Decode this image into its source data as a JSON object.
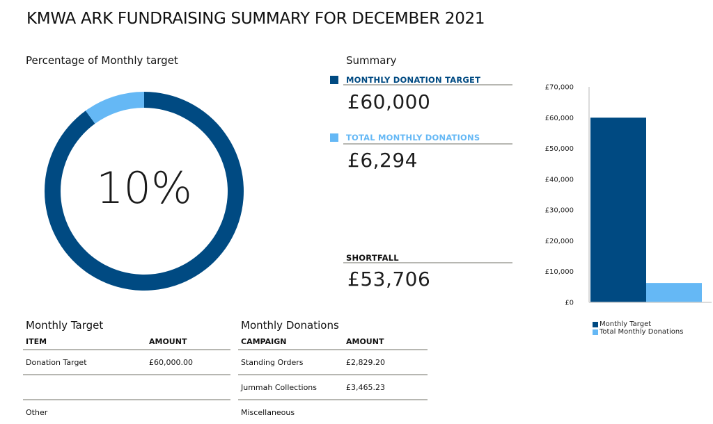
{
  "title": "KMWA ARK FUNDRAISING SUMMARY FOR DECEMBER 2021",
  "colors": {
    "dark": "#004a82",
    "light": "#65b8f5",
    "rule": "#b7b7b2"
  },
  "donut": {
    "title": "Percentage of Monthly target",
    "center_label": "10%",
    "fraction_achieved": 0.1
  },
  "summary": {
    "title": "Summary",
    "target_label": "MONTHLY DONATION TARGET",
    "target_value": "£60,000",
    "donations_label": "TOTAL MONTHLY DONATIONS",
    "donations_value": "£6,294",
    "shortfall_label": "SHORTFALL",
    "shortfall_value": "£53,706"
  },
  "chart_data": {
    "type": "bar",
    "categories": [
      "Monthly Target",
      "Total Monthly Donations"
    ],
    "values": [
      60000,
      6294
    ],
    "colors": [
      "#004a82",
      "#65b8f5"
    ],
    "ylim": [
      0,
      70000
    ],
    "yticks": [
      0,
      10000,
      20000,
      30000,
      40000,
      50000,
      60000,
      70000
    ],
    "ytick_labels": [
      "£0",
      "£10,000",
      "£20,000",
      "£30,000",
      "£40,000",
      "£50,000",
      "£60,000",
      "£70,000"
    ],
    "legend": [
      "Monthly Target",
      "Total Monthly Donations"
    ],
    "legend_position": "bottom-left",
    "grid": false
  },
  "target_table": {
    "title": "Monthly Target",
    "headers": [
      "ITEM",
      "AMOUNT"
    ],
    "rows": [
      [
        "Donation Target",
        "£60,000.00"
      ],
      [
        "",
        ""
      ],
      [
        "Other",
        ""
      ]
    ]
  },
  "donations_table": {
    "title": "Monthly Donations",
    "headers": [
      "CAMPAIGN",
      "AMOUNT"
    ],
    "rows": [
      [
        "Standing Orders",
        "£2,829.20"
      ],
      [
        "Jummah Collections",
        "£3,465.23"
      ],
      [
        "Miscellaneous",
        ""
      ]
    ]
  }
}
